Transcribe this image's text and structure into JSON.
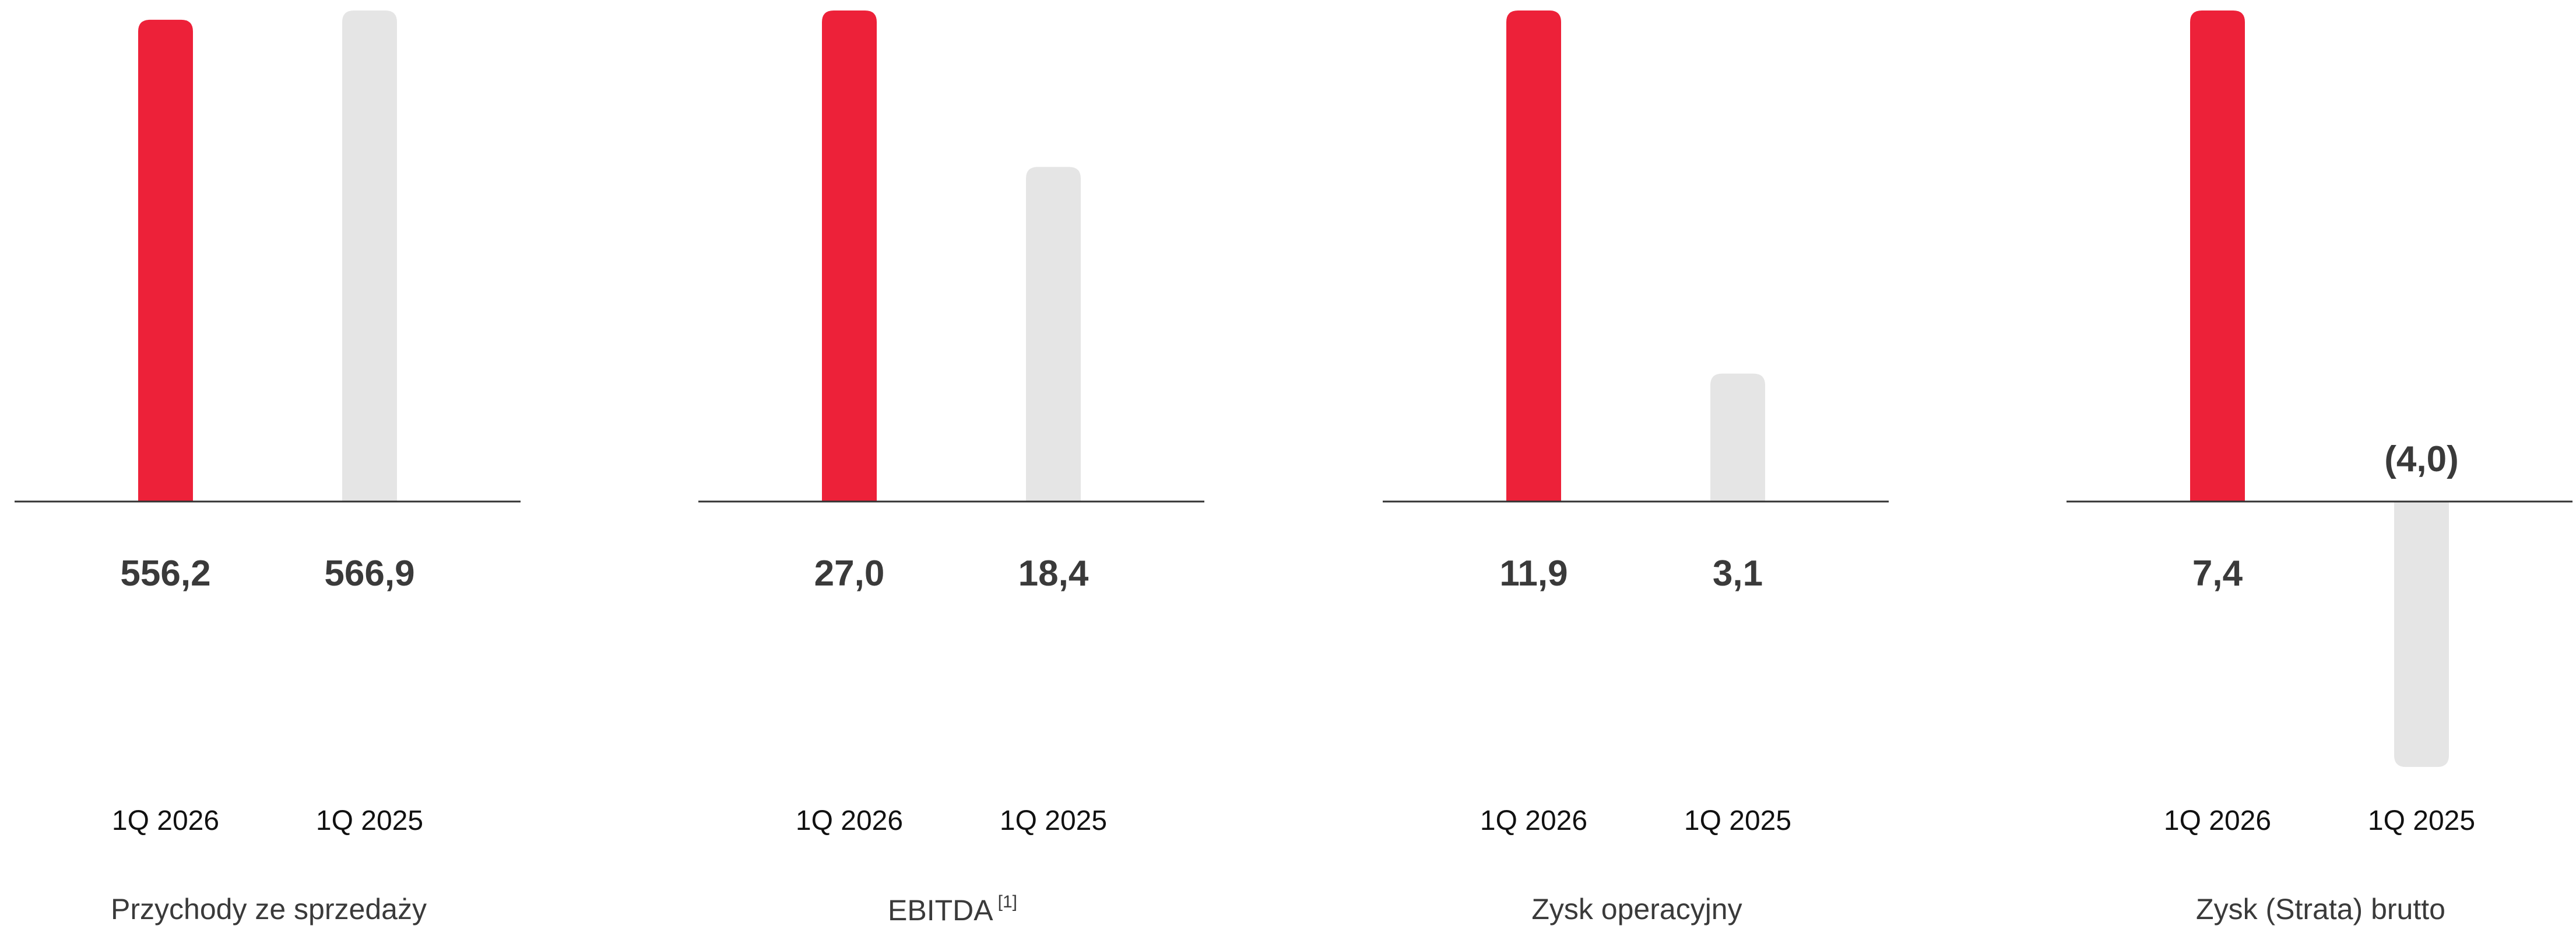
{
  "colors": {
    "current": "#ED2139",
    "previous": "#E5E5E5",
    "axis": "#333333"
  },
  "chart_data": [
    {
      "type": "bar",
      "title": "Przychody ze sprzedaży",
      "title_sup": "",
      "categories": [
        "1Q 2026",
        "1Q 2025"
      ],
      "values": [
        556.2,
        566.9
      ],
      "value_labels": [
        "556,2",
        "566,9"
      ],
      "ylim": [
        0,
        566.9
      ]
    },
    {
      "type": "bar",
      "title": "EBITDA",
      "title_sup": "[1]",
      "categories": [
        "1Q 2026",
        "1Q 2025"
      ],
      "values": [
        27.0,
        18.4
      ],
      "value_labels": [
        "27,0",
        "18,4"
      ],
      "ylim": [
        0,
        27.0
      ]
    },
    {
      "type": "bar",
      "title": "Zysk operacyjny",
      "title_sup": "",
      "categories": [
        "1Q 2026",
        "1Q 2025"
      ],
      "values": [
        11.9,
        3.1
      ],
      "value_labels": [
        "11,9",
        "3,1"
      ],
      "ylim": [
        0,
        11.9
      ]
    },
    {
      "type": "bar",
      "title": "Zysk (Strata) brutto",
      "title_sup": "",
      "categories": [
        "1Q 2026",
        "1Q 2025"
      ],
      "values": [
        7.4,
        -4.0
      ],
      "value_labels": [
        "7,4",
        "(4,0)"
      ],
      "ylim": [
        -4.0,
        7.4
      ]
    }
  ]
}
